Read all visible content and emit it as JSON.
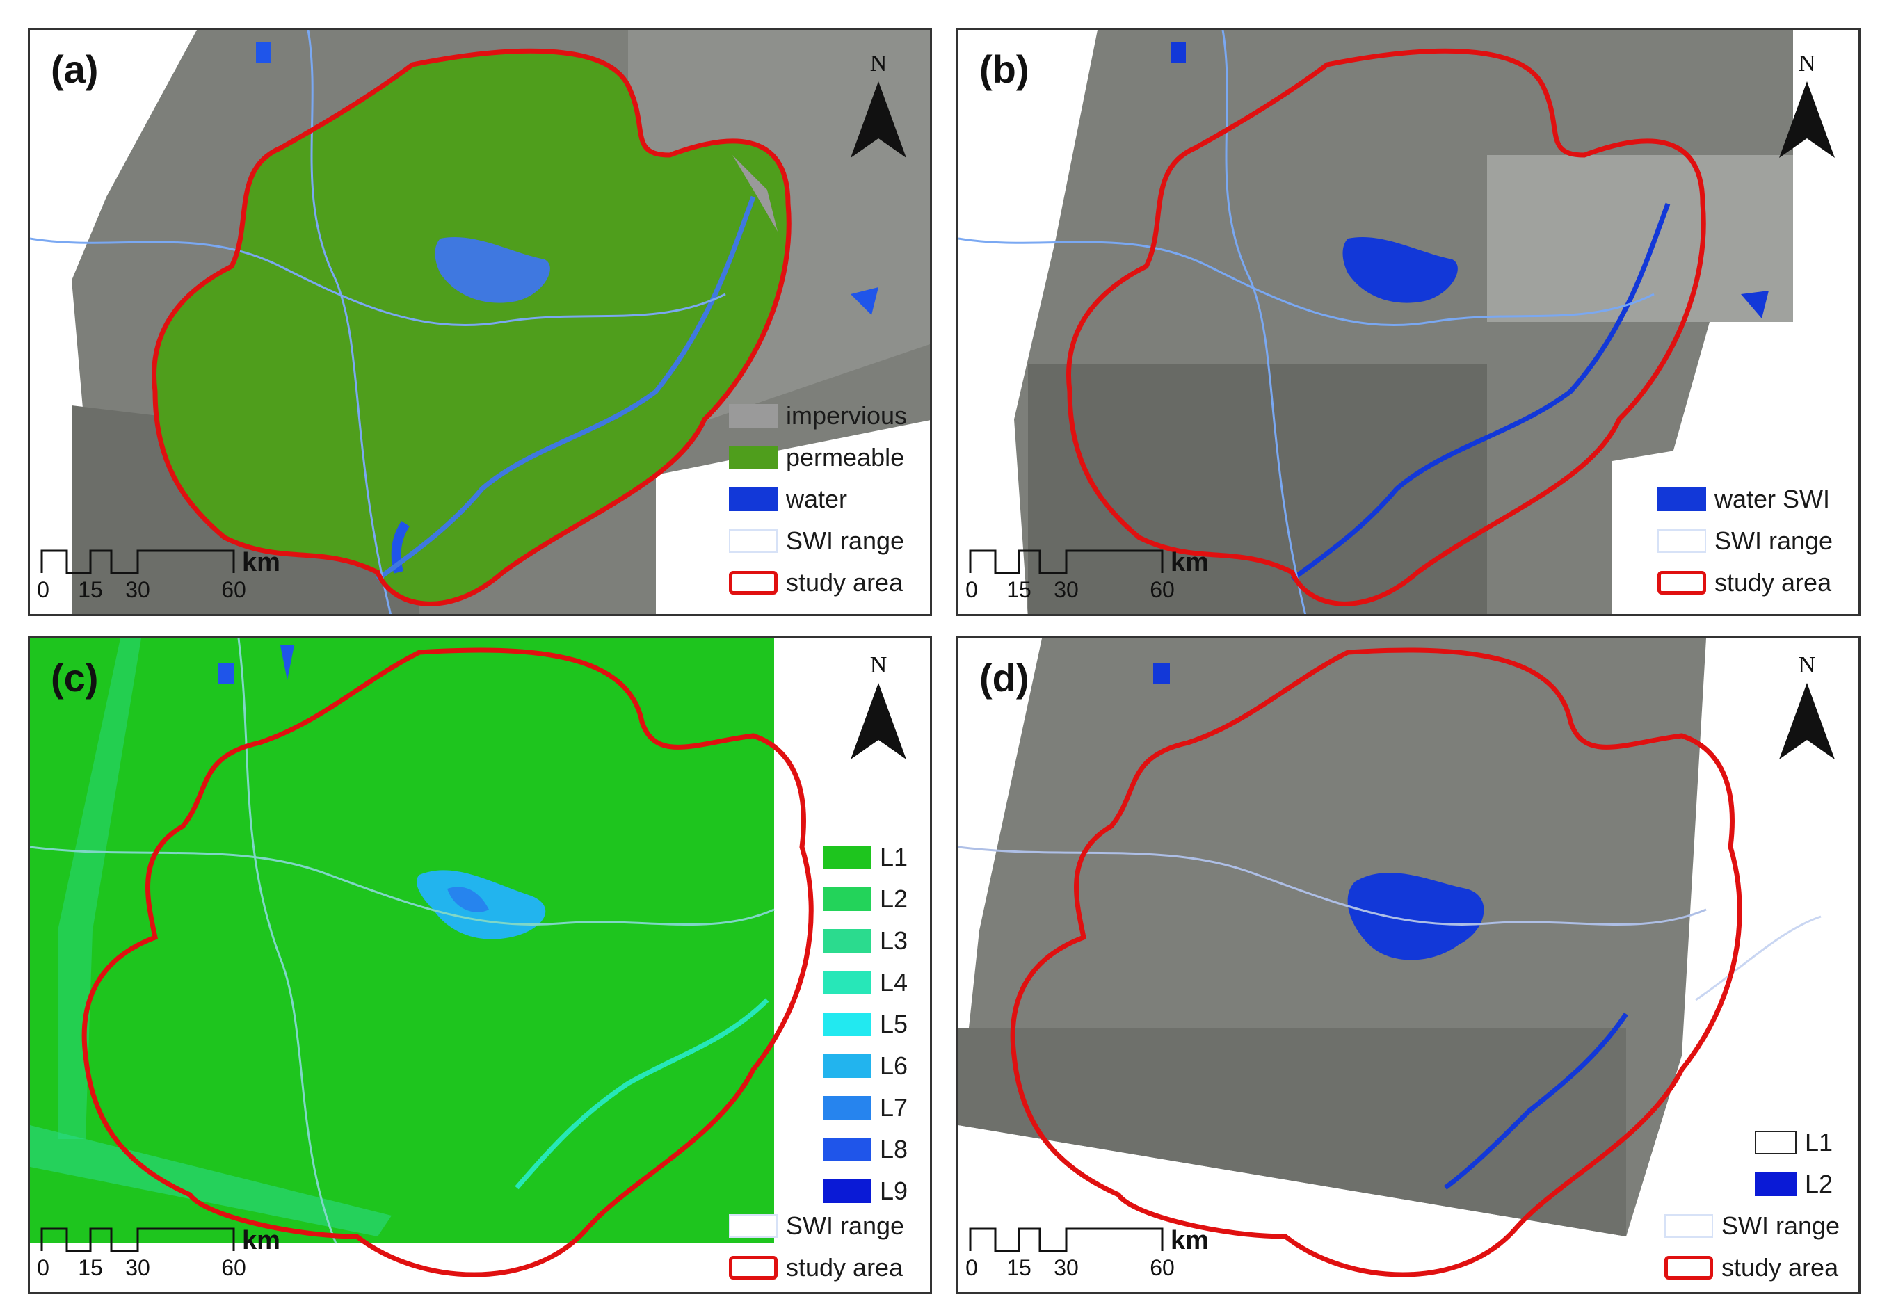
{
  "panels": {
    "a": {
      "label": "(a)",
      "north": "N",
      "legend": [
        {
          "label": "impervious",
          "color": "#9a9a9a"
        },
        {
          "label": "permeable",
          "color": "#4f9e1c"
        },
        {
          "label": "water",
          "color": "#1238d8"
        },
        {
          "label": "SWI range",
          "color": "outline-light"
        },
        {
          "label": "study area",
          "color": "outline-red"
        }
      ]
    },
    "b": {
      "label": "(b)",
      "north": "N",
      "legend": [
        {
          "label": "water SWI",
          "color": "#1238d8"
        },
        {
          "label": "SWI range",
          "color": "outline-light"
        },
        {
          "label": "study area",
          "color": "outline-red"
        }
      ]
    },
    "c": {
      "label": "(c)",
      "north": "N",
      "legend": [
        {
          "label": "L1",
          "color": "#1ec51e"
        },
        {
          "label": "L2",
          "color": "#23d35a"
        },
        {
          "label": "L3",
          "color": "#2bdb8e"
        },
        {
          "label": "L4",
          "color": "#27e7b8"
        },
        {
          "label": "L5",
          "color": "#22e9f0"
        },
        {
          "label": "L6",
          "color": "#22b4ee"
        },
        {
          "label": "L7",
          "color": "#2684ee"
        },
        {
          "label": "L8",
          "color": "#1f55ea"
        },
        {
          "label": "L9",
          "color": "#0a1ad6"
        },
        {
          "label": "SWI range",
          "color": "outline-light"
        },
        {
          "label": "study area",
          "color": "outline-red"
        }
      ]
    },
    "d": {
      "label": "(d)",
      "north": "N",
      "legend": [
        {
          "label": "L1",
          "color": "outline-dark"
        },
        {
          "label": "L2",
          "color": "#0a1ad6"
        },
        {
          "label": "SWI range",
          "color": "outline-light"
        },
        {
          "label": "study area",
          "color": "outline-red"
        }
      ]
    }
  },
  "scale_bar": {
    "unit": "km",
    "ticks": [
      "0",
      "15",
      "30",
      "60"
    ]
  },
  "colors": {
    "study_area": "#e01010",
    "water": "#1238d8",
    "river": "#7aa8f2",
    "imagery": "#7d7f7a",
    "permeable": "#4f9e1c",
    "level_base": "#1ec51e"
  },
  "icons": {
    "north_arrow": "north-arrow-icon"
  }
}
